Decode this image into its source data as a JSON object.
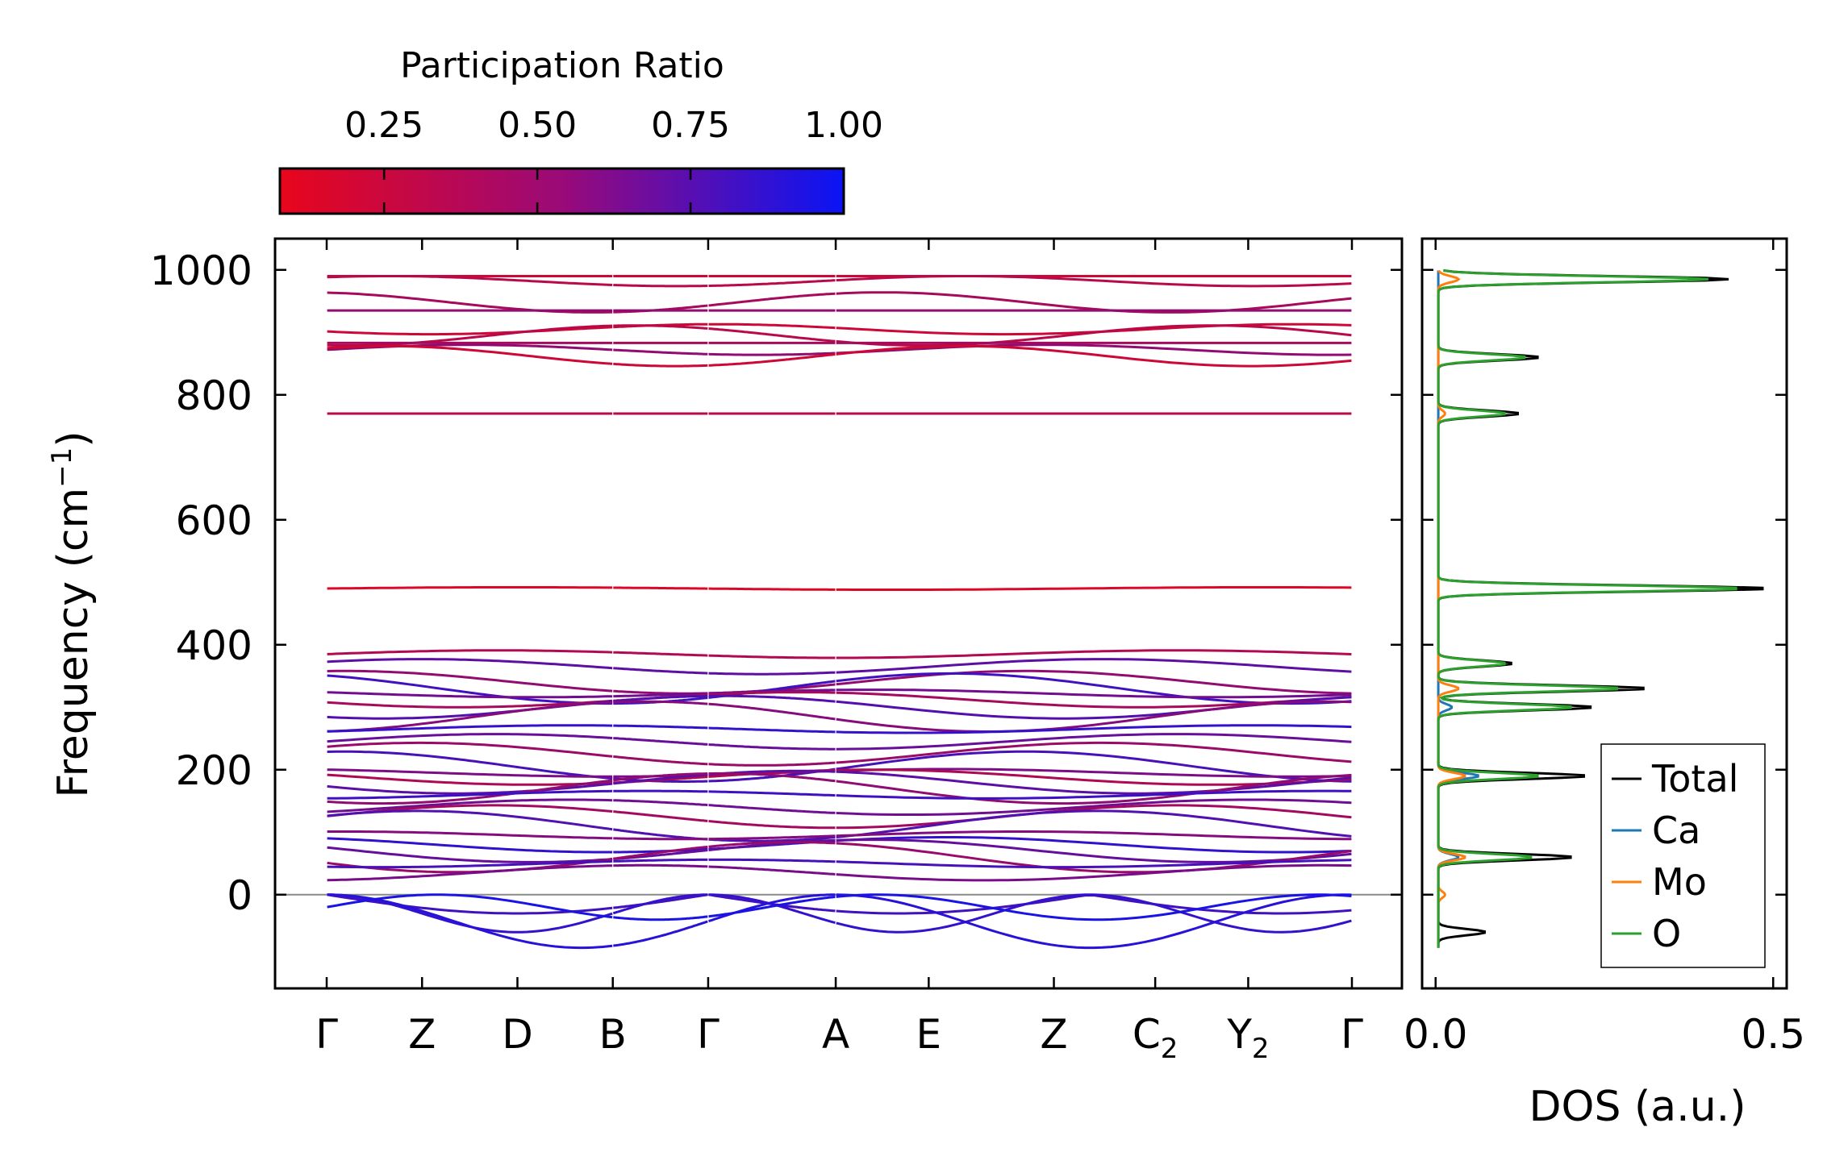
{
  "chart_data": [
    {
      "type": "line",
      "subtype": "phonon-band-structure",
      "ylabel_main": "Frequency (cm",
      "ylabel_sup": "−1",
      "ylabel_close": ")",
      "ylim": [
        -150,
        1050
      ],
      "yticks": [
        0,
        200,
        400,
        600,
        800,
        1000
      ],
      "ytick_labels": [
        "0",
        "200",
        "400",
        "600",
        "800",
        "1000"
      ],
      "kpath_positions": [
        0,
        0.8,
        1.6,
        2.4,
        3.2,
        4.27,
        5.05,
        6.1,
        6.95,
        7.73,
        8.6
      ],
      "kpath_labels": [
        {
          "main": "Γ",
          "sub": ""
        },
        {
          "main": "Z",
          "sub": ""
        },
        {
          "main": "D",
          "sub": ""
        },
        {
          "main": "B",
          "sub": ""
        },
        {
          "main": "Γ",
          "sub": ""
        },
        {
          "main": "A",
          "sub": ""
        },
        {
          "main": "E",
          "sub": ""
        },
        {
          "main": "Z",
          "sub": ""
        },
        {
          "main": "C",
          "sub": "2"
        },
        {
          "main": "Y",
          "sub": "2"
        },
        {
          "main": "Γ",
          "sub": ""
        }
      ],
      "segment_breaks": [
        2.4,
        3.2,
        4.27
      ],
      "zero_line": 0,
      "high_band_levels": [
        990,
        982,
        948,
        935,
        905,
        895,
        883,
        872,
        862,
        770
      ],
      "mid_band_level": 490,
      "low_band_levels": [
        385,
        365,
        340,
        330,
        322,
        312,
        300,
        285,
        265,
        245,
        225,
        205,
        195,
        188,
        180,
        170,
        160,
        140,
        125,
        110,
        95,
        80,
        70,
        60,
        50,
        35
      ],
      "colorbar": {
        "title": "Participation Ratio",
        "range": [
          0.08,
          1.0
        ],
        "ticks": [
          0.25,
          0.5,
          0.75,
          1.0
        ],
        "tick_labels": [
          "0.25",
          "0.50",
          "0.75",
          "1.00"
        ],
        "color_low": "#e8061c",
        "color_high": "#0a14f5"
      }
    },
    {
      "type": "line",
      "subtype": "density-of-states",
      "xlabel": "DOS (a.u.)",
      "xlim": [
        -0.02,
        0.52
      ],
      "xticks": [
        0.0,
        0.5
      ],
      "xtick_labels": [
        "0.0",
        "0.5"
      ],
      "legend_location": "lower-right",
      "series": [
        {
          "name": "Total",
          "color": "#000000",
          "peaks": [
            [
              985,
              0.43
            ],
            [
              770,
              0.12
            ],
            [
              860,
              0.15
            ],
            [
              490,
              0.49
            ],
            [
              330,
              0.31
            ],
            [
              300,
              0.23
            ],
            [
              370,
              0.11
            ],
            [
              190,
              0.22
            ],
            [
              60,
              0.2
            ],
            [
              -60,
              0.07
            ]
          ]
        },
        {
          "name": "Ca",
          "color": "#1f77b4",
          "peaks": [
            [
              190,
              0.06
            ],
            [
              60,
              0.03
            ],
            [
              300,
              0.02
            ]
          ]
        },
        {
          "name": "Mo",
          "color": "#ff7f0e",
          "peaks": [
            [
              985,
              0.03
            ],
            [
              770,
              0.01
            ],
            [
              330,
              0.03
            ],
            [
              190,
              0.04
            ],
            [
              60,
              0.04
            ],
            [
              0,
              0.01
            ]
          ]
        },
        {
          "name": "O",
          "color": "#2ca02c",
          "peaks": [
            [
              985,
              0.4
            ],
            [
              770,
              0.1
            ],
            [
              860,
              0.13
            ],
            [
              490,
              0.45
            ],
            [
              330,
              0.27
            ],
            [
              300,
              0.2
            ],
            [
              370,
              0.1
            ],
            [
              190,
              0.15
            ],
            [
              60,
              0.14
            ]
          ]
        }
      ]
    }
  ]
}
